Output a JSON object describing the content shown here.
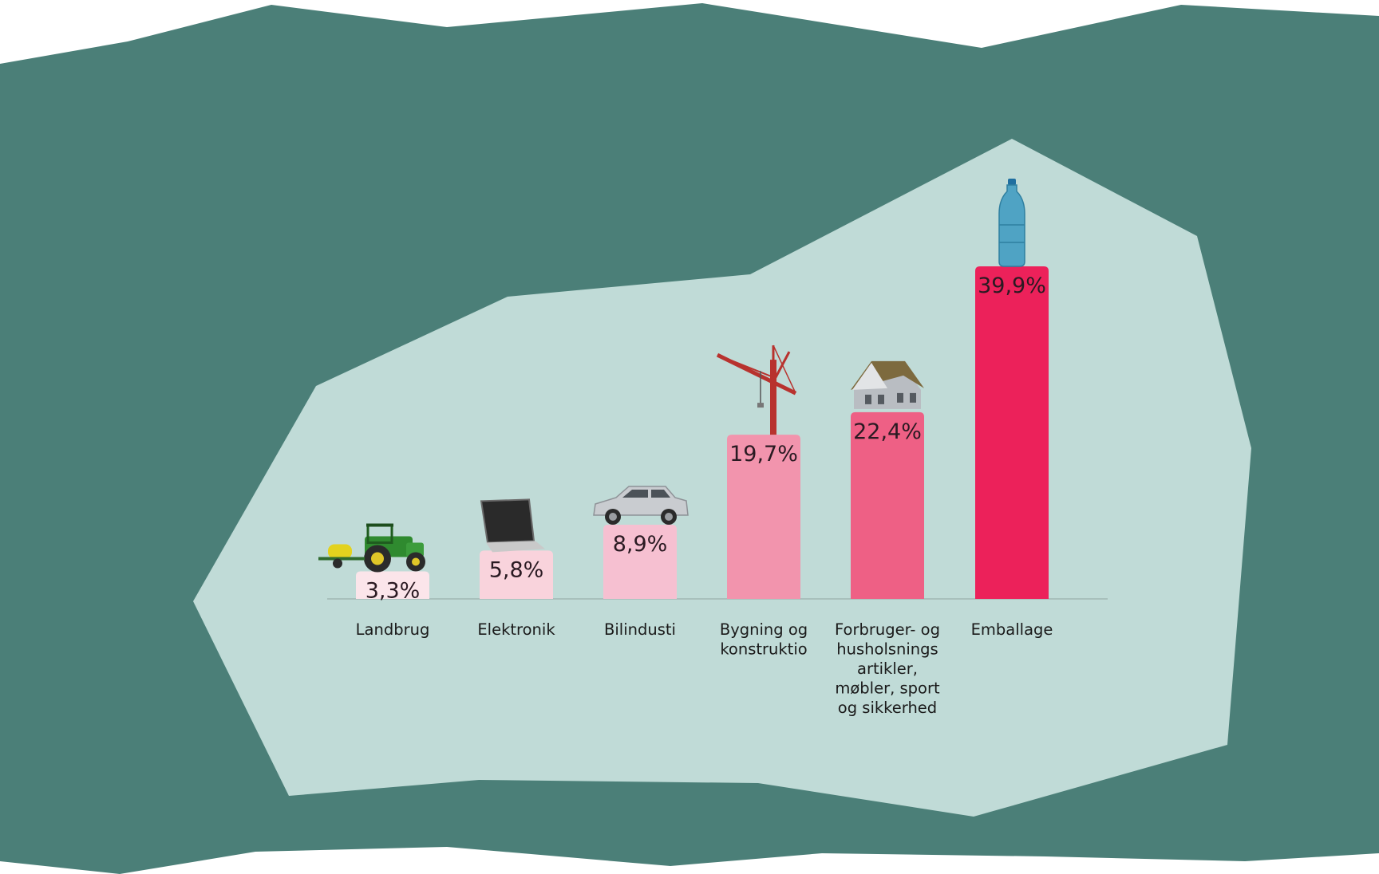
{
  "colors": {
    "paper": "#4b7f78",
    "panel": "#c0dbd7",
    "baseline": "#9fb8b4",
    "bars": [
      "#fbe5ea",
      "#f9d3dc",
      "#f6c0d1",
      "#f294ad",
      "#ee6085",
      "#ec215a"
    ]
  },
  "chart_data": {
    "type": "bar",
    "categories": [
      "Landbrug",
      "Elektronik",
      "Bilindusti",
      "Bygning og konstruktio",
      "Forbruger- og husholsnings artikler, møbler, sport og sikkerhed",
      "Emballage"
    ],
    "category_lines": [
      [
        "Landbrug"
      ],
      [
        "Elektronik"
      ],
      [
        "Bilindusti"
      ],
      [
        "Bygning og",
        "konstruktio"
      ],
      [
        "Forbruger- og",
        "husholsnings",
        "artikler,",
        "møbler, sport",
        "og sikkerhed"
      ],
      [
        "Emballage"
      ]
    ],
    "values": [
      3.3,
      5.8,
      8.9,
      19.7,
      22.4,
      39.9
    ],
    "value_labels": [
      "3,3%",
      "5,8%",
      "8,9%",
      "19,7%",
      "22,4%",
      "39,9%"
    ],
    "icons": [
      "tractor-icon",
      "laptop-icon",
      "car-icon",
      "crane-icon",
      "house-icon",
      "bottle-icon"
    ],
    "ylim": [
      0,
      40
    ],
    "grid": false,
    "legend": "none",
    "title": "",
    "xlabel": "",
    "ylabel": ""
  }
}
